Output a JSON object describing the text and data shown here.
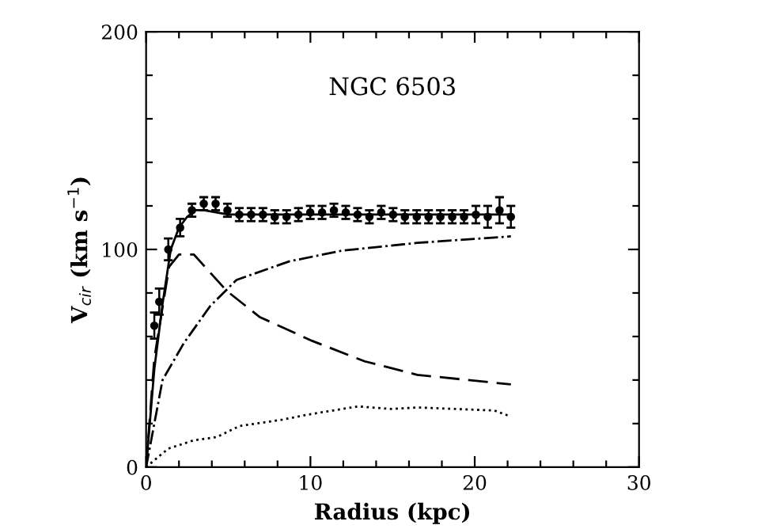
{
  "chart_data": {
    "type": "line",
    "title": "NGC 6503",
    "xlabel": "Radius (kpc)",
    "ylabel": "V$_{cir}$ (km s$^{−1}$)",
    "xlim": [
      0,
      30
    ],
    "ylim": [
      0,
      200
    ],
    "xticks": [
      0,
      {
        "value": 2,
        "label": null
      },
      {
        "value": 4,
        "label": null
      },
      {
        "value": 6,
        "label": null
      },
      {
        "value": 8,
        "label": null
      },
      10,
      {
        "value": 12,
        "label": null
      },
      {
        "value": 14,
        "label": null
      },
      {
        "value": 16,
        "label": null
      },
      {
        "value": 18,
        "label": null
      },
      20,
      {
        "value": 22,
        "label": null
      },
      {
        "value": 24,
        "label": null
      },
      {
        "value": 26,
        "label": null
      },
      {
        "value": 28,
        "label": null
      },
      30
    ],
    "yticks": [
      0,
      {
        "value": 20,
        "label": null
      },
      {
        "value": 40,
        "label": null
      },
      {
        "value": 60,
        "label": null
      },
      {
        "value": 80,
        "label": null
      },
      100,
      {
        "value": 120,
        "label": null
      },
      {
        "value": 140,
        "label": null
      },
      {
        "value": 160,
        "label": null
      },
      {
        "value": 180,
        "label": null
      },
      200
    ],
    "grid": false,
    "legend": false,
    "series": [
      {
        "type": "scatter",
        "marker": "circle",
        "color": "#000000",
        "x": [
          0.5,
          0.8,
          1.35,
          2.07,
          2.79,
          3.51,
          4.23,
          4.95,
          5.67,
          6.39,
          7.11,
          7.83,
          8.55,
          9.27,
          9.99,
          10.71,
          11.43,
          12.15,
          12.87,
          13.59,
          14.31,
          15.03,
          15.75,
          16.47,
          17.19,
          17.91,
          18.63,
          19.35,
          20.07,
          20.79,
          21.51,
          22.2
        ],
        "values": [
          65,
          76,
          100,
          110,
          118,
          121,
          121,
          118,
          116,
          116,
          116,
          115,
          115,
          116,
          117,
          117,
          118,
          117,
          116,
          115,
          117,
          116,
          115,
          115,
          115,
          115,
          115,
          115,
          116,
          115,
          118,
          115
        ],
        "errors": [
          6,
          6,
          5,
          4,
          3,
          3,
          3,
          3,
          3,
          3,
          3,
          3,
          3,
          3,
          3,
          3,
          3,
          3,
          3,
          3,
          3,
          3,
          3,
          3,
          3,
          3,
          3,
          3,
          4,
          5,
          6,
          5
        ]
      },
      {
        "line_style": "solid",
        "color": "#000000",
        "x": [
          0,
          0.5,
          1.0,
          1.5,
          2.0,
          2.5,
          3.0,
          3.5,
          5,
          10,
          15,
          22.2
        ],
        "values": [
          0,
          45,
          75,
          100,
          110,
          115,
          118,
          118,
          116,
          116,
          116,
          116
        ]
      },
      {
        "line_style": "dashed",
        "color": "#000000",
        "x": [
          0,
          0.5,
          1.4,
          2.0,
          2.9,
          4.9,
          6.9,
          10.1,
          13.3,
          16.5,
          22.2
        ],
        "values": [
          0,
          50,
          92,
          97.7,
          97.7,
          81,
          69,
          58,
          48.6,
          42.4,
          38
        ]
      },
      {
        "line_style": "dashdot",
        "color": "#000000",
        "x": [
          0,
          1.0,
          2.3,
          3.9,
          5.5,
          8.7,
          11.9,
          16.5,
          22.2
        ],
        "values": [
          0,
          40,
          57,
          74,
          86,
          94.5,
          99.4,
          103,
          106
        ]
      },
      {
        "line_style": "dotted",
        "color": "#000000",
        "x": [
          0,
          1.35,
          2.9,
          4.3,
          5.7,
          8.3,
          9.9,
          12.9,
          14.9,
          16.5,
          21.2,
          22.2
        ],
        "values": [
          0,
          8.5,
          12.3,
          13.8,
          18.9,
          21.8,
          24.2,
          27.9,
          26.7,
          27.4,
          26,
          23.2
        ]
      }
    ]
  }
}
